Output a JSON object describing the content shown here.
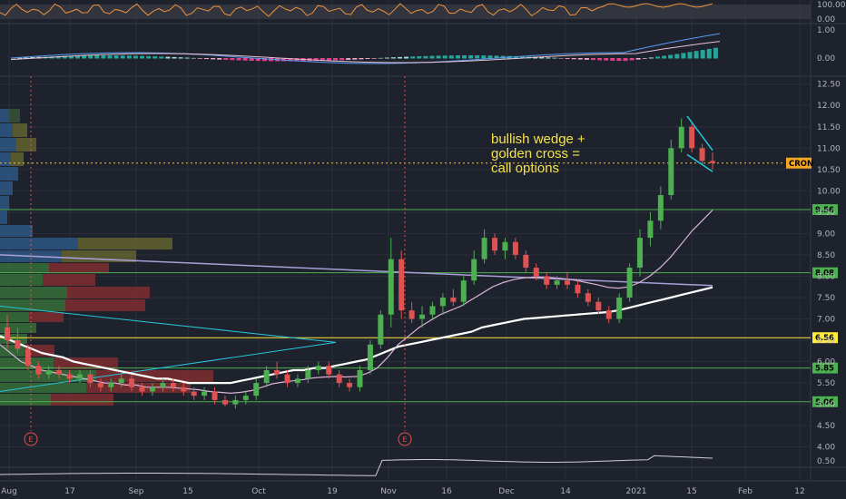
{
  "chart_data": {
    "type": "candlestick",
    "symbol": "CRON",
    "annotation": [
      "bullish wedge +",
      "golden cross =",
      "call options"
    ],
    "x_tick_labels": [
      "Aug",
      "17",
      "Sep",
      "15",
      "Oct",
      "19",
      "Nov",
      "16",
      "Dec",
      "14",
      "2021",
      "15",
      "Feb",
      "12"
    ],
    "y_ticks": [
      "12.50",
      "12.00",
      "11.50",
      "11.00",
      "10.50",
      "10.00",
      "9.50",
      "9.00",
      "8.50",
      "8.00",
      "7.50",
      "7.00",
      "6.50",
      "6.00",
      "5.50",
      "5.00",
      "4.50",
      "4.00"
    ],
    "price_range": [
      3.95,
      12.6
    ],
    "last_price": 10.65,
    "horizontal_levels": [
      {
        "label": "9.56",
        "value": 9.56,
        "color": "#4caf50"
      },
      {
        "label": "8.08",
        "value": 8.08,
        "color": "#4caf50"
      },
      {
        "label": "6.56",
        "value": 6.56,
        "color": "#ffeb3b"
      },
      {
        "label": "5.85",
        "value": 5.85,
        "color": "#4caf50"
      },
      {
        "label": "5.06",
        "value": 5.06,
        "color": "#4caf50"
      }
    ],
    "candles": [
      [
        6.8,
        7.1,
        6.3,
        6.5
      ],
      [
        6.5,
        6.8,
        6.2,
        6.3
      ],
      [
        6.3,
        6.4,
        5.8,
        5.9
      ],
      [
        5.9,
        6.0,
        5.6,
        5.7
      ],
      [
        5.7,
        5.9,
        5.6,
        5.8
      ],
      [
        5.8,
        5.9,
        5.6,
        5.7
      ],
      [
        5.7,
        5.8,
        5.5,
        5.6
      ],
      [
        5.6,
        5.8,
        5.5,
        5.7
      ],
      [
        5.7,
        5.8,
        5.4,
        5.5
      ],
      [
        5.5,
        5.6,
        5.3,
        5.4
      ],
      [
        5.4,
        5.6,
        5.3,
        5.5
      ],
      [
        5.5,
        5.7,
        5.4,
        5.6
      ],
      [
        5.6,
        5.7,
        5.3,
        5.4
      ],
      [
        5.4,
        5.5,
        5.2,
        5.3
      ],
      [
        5.3,
        5.5,
        5.2,
        5.4
      ],
      [
        5.4,
        5.6,
        5.3,
        5.5
      ],
      [
        5.5,
        5.6,
        5.3,
        5.4
      ],
      [
        5.4,
        5.5,
        5.2,
        5.3
      ],
      [
        5.3,
        5.4,
        5.1,
        5.2
      ],
      [
        5.2,
        5.4,
        5.1,
        5.3
      ],
      [
        5.3,
        5.4,
        5.0,
        5.1
      ],
      [
        5.1,
        5.2,
        4.95,
        5.0
      ],
      [
        5.0,
        5.2,
        4.9,
        5.1
      ],
      [
        5.1,
        5.3,
        5.0,
        5.2
      ],
      [
        5.2,
        5.6,
        5.1,
        5.5
      ],
      [
        5.5,
        5.9,
        5.4,
        5.8
      ],
      [
        5.8,
        6.0,
        5.6,
        5.7
      ],
      [
        5.7,
        5.8,
        5.4,
        5.5
      ],
      [
        5.5,
        5.7,
        5.4,
        5.6
      ],
      [
        5.6,
        5.9,
        5.5,
        5.8
      ],
      [
        5.8,
        6.0,
        5.7,
        5.9
      ],
      [
        5.9,
        6.0,
        5.6,
        5.7
      ],
      [
        5.7,
        5.8,
        5.4,
        5.5
      ],
      [
        5.5,
        5.6,
        5.3,
        5.4
      ],
      [
        5.4,
        5.9,
        5.3,
        5.8
      ],
      [
        5.8,
        6.5,
        5.7,
        6.4
      ],
      [
        6.4,
        7.2,
        6.3,
        7.1
      ],
      [
        7.1,
        8.9,
        6.8,
        8.4
      ],
      [
        8.4,
        8.6,
        7.0,
        7.2
      ],
      [
        7.2,
        7.4,
        6.9,
        7.0
      ],
      [
        7.0,
        7.3,
        6.8,
        7.1
      ],
      [
        7.1,
        7.4,
        7.0,
        7.3
      ],
      [
        7.3,
        7.6,
        7.1,
        7.5
      ],
      [
        7.5,
        7.7,
        7.3,
        7.4
      ],
      [
        7.4,
        8.0,
        7.3,
        7.9
      ],
      [
        7.9,
        8.6,
        7.8,
        8.4
      ],
      [
        8.4,
        9.1,
        8.3,
        8.9
      ],
      [
        8.9,
        9.0,
        8.5,
        8.6
      ],
      [
        8.6,
        8.9,
        8.4,
        8.8
      ],
      [
        8.8,
        8.9,
        8.4,
        8.5
      ],
      [
        8.5,
        8.6,
        8.1,
        8.2
      ],
      [
        8.2,
        8.3,
        7.9,
        8.0
      ],
      [
        8.0,
        8.1,
        7.7,
        7.8
      ],
      [
        7.8,
        8.0,
        7.7,
        7.9
      ],
      [
        7.9,
        8.1,
        7.7,
        7.8
      ],
      [
        7.8,
        7.9,
        7.5,
        7.6
      ],
      [
        7.6,
        7.7,
        7.3,
        7.4
      ],
      [
        7.4,
        7.5,
        7.1,
        7.2
      ],
      [
        7.2,
        7.3,
        6.9,
        7.0
      ],
      [
        7.0,
        7.6,
        6.9,
        7.5
      ],
      [
        7.5,
        8.3,
        7.4,
        8.2
      ],
      [
        8.2,
        9.1,
        8.0,
        8.9
      ],
      [
        8.9,
        9.5,
        8.7,
        9.3
      ],
      [
        9.3,
        10.1,
        9.1,
        9.9
      ],
      [
        9.9,
        11.2,
        9.8,
        11.0
      ],
      [
        11.0,
        11.7,
        10.9,
        11.5
      ],
      [
        11.5,
        11.6,
        10.9,
        11.0
      ],
      [
        11.0,
        11.1,
        10.6,
        10.7
      ],
      [
        10.7,
        10.9,
        10.5,
        10.65
      ]
    ],
    "series": [
      {
        "name": "",
        "color": "#ffffff",
        "values": [
          6.6,
          6.5,
          6.4,
          6.3,
          6.2,
          6.15,
          6.1,
          6.0,
          5.95,
          5.9,
          5.85,
          5.8,
          5.75,
          5.7,
          5.65,
          5.6,
          5.6,
          5.55,
          5.5,
          5.5,
          5.5,
          5.5,
          5.5,
          5.55,
          5.6,
          5.65,
          5.7,
          5.75,
          5.8,
          5.8,
          5.85,
          5.85,
          5.9,
          5.95,
          6.0,
          6.05,
          6.15,
          6.25,
          6.35,
          6.4,
          6.45,
          6.5,
          6.55,
          6.6,
          6.65,
          6.7,
          6.8,
          6.85,
          6.9,
          6.95,
          7.0,
          7.02,
          7.04,
          7.06,
          7.08,
          7.1,
          7.12,
          7.14,
          7.16,
          7.2,
          7.26,
          7.32,
          7.38,
          7.44,
          7.5,
          7.56,
          7.62,
          7.68,
          7.74
        ]
      },
      {
        "name": "",
        "color": "#d8b4d8",
        "values": [
          6.4,
          6.2,
          6.0,
          5.9,
          5.8,
          5.75,
          5.7,
          5.65,
          5.6,
          5.55,
          5.5,
          5.5,
          5.45,
          5.45,
          5.4,
          5.4,
          5.4,
          5.38,
          5.36,
          5.34,
          5.3,
          5.28,
          5.26,
          5.28,
          5.32,
          5.4,
          5.48,
          5.52,
          5.55,
          5.58,
          5.62,
          5.64,
          5.65,
          5.64,
          5.65,
          5.72,
          5.85,
          6.1,
          6.4,
          6.6,
          6.8,
          6.95,
          7.1,
          7.2,
          7.3,
          7.45,
          7.6,
          7.75,
          7.85,
          7.92,
          7.96,
          7.98,
          7.98,
          7.96,
          7.94,
          7.9,
          7.85,
          7.8,
          7.74,
          7.72,
          7.75,
          7.85,
          8.0,
          8.2,
          8.45,
          8.75,
          9.05,
          9.3,
          9.55
        ]
      }
    ],
    "indicator_panels": [
      {
        "name": "oscillator",
        "ticks": [
          "100.00",
          "0.00"
        ]
      },
      {
        "name": "macd",
        "ticks": [
          "1.00",
          "0.00"
        ]
      },
      {
        "name": "bottom",
        "ticks": [
          "0.50"
        ]
      }
    ],
    "earnings_markers": [
      "E",
      "E"
    ],
    "grid": true
  }
}
